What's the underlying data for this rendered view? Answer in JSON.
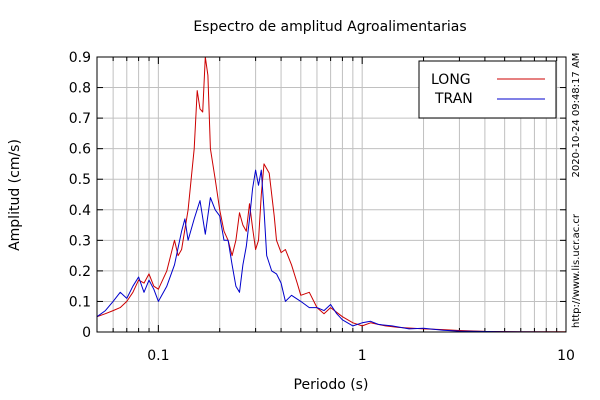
{
  "chart_data": {
    "type": "line",
    "title": "Espectro de amplitud Agroalimentarias",
    "xlabel": "Periodo (s)",
    "ylabel": "Amplitud (cm/s)",
    "x_scale": "log",
    "xlim": [
      0.05,
      10
    ],
    "ylim": [
      0,
      0.9
    ],
    "grid": true,
    "legend_position": "top-right",
    "x_ticks": [
      {
        "value": 0.1,
        "label": "0.1"
      },
      {
        "value": 1,
        "label": "1"
      },
      {
        "value": 10,
        "label": "10"
      }
    ],
    "y_ticks": [
      {
        "value": 0,
        "label": "0"
      },
      {
        "value": 0.1,
        "label": "0.1"
      },
      {
        "value": 0.2,
        "label": "0.2"
      },
      {
        "value": 0.3,
        "label": "0.3"
      },
      {
        "value": 0.4,
        "label": "0.4"
      },
      {
        "value": 0.5,
        "label": "0.5"
      },
      {
        "value": 0.6,
        "label": "0.6"
      },
      {
        "value": 0.7,
        "label": "0.7"
      },
      {
        "value": 0.8,
        "label": "0.8"
      },
      {
        "value": 0.9,
        "label": "0.9"
      }
    ],
    "series": [
      {
        "name": "LONG",
        "color": "#cc0000",
        "points": [
          [
            0.05,
            0.05
          ],
          [
            0.055,
            0.06
          ],
          [
            0.06,
            0.07
          ],
          [
            0.065,
            0.08
          ],
          [
            0.07,
            0.1
          ],
          [
            0.075,
            0.13
          ],
          [
            0.08,
            0.17
          ],
          [
            0.085,
            0.16
          ],
          [
            0.09,
            0.19
          ],
          [
            0.095,
            0.15
          ],
          [
            0.1,
            0.14
          ],
          [
            0.11,
            0.2
          ],
          [
            0.12,
            0.3
          ],
          [
            0.125,
            0.25
          ],
          [
            0.13,
            0.27
          ],
          [
            0.14,
            0.4
          ],
          [
            0.15,
            0.6
          ],
          [
            0.155,
            0.79
          ],
          [
            0.16,
            0.73
          ],
          [
            0.165,
            0.72
          ],
          [
            0.17,
            0.9
          ],
          [
            0.175,
            0.84
          ],
          [
            0.18,
            0.6
          ],
          [
            0.19,
            0.5
          ],
          [
            0.2,
            0.4
          ],
          [
            0.21,
            0.33
          ],
          [
            0.22,
            0.3
          ],
          [
            0.23,
            0.25
          ],
          [
            0.24,
            0.3
          ],
          [
            0.25,
            0.39
          ],
          [
            0.26,
            0.35
          ],
          [
            0.27,
            0.33
          ],
          [
            0.28,
            0.42
          ],
          [
            0.29,
            0.34
          ],
          [
            0.3,
            0.27
          ],
          [
            0.31,
            0.3
          ],
          [
            0.32,
            0.45
          ],
          [
            0.33,
            0.55
          ],
          [
            0.35,
            0.52
          ],
          [
            0.37,
            0.38
          ],
          [
            0.38,
            0.3
          ],
          [
            0.4,
            0.26
          ],
          [
            0.42,
            0.27
          ],
          [
            0.45,
            0.22
          ],
          [
            0.48,
            0.16
          ],
          [
            0.5,
            0.12
          ],
          [
            0.55,
            0.13
          ],
          [
            0.6,
            0.08
          ],
          [
            0.65,
            0.06
          ],
          [
            0.7,
            0.08
          ],
          [
            0.8,
            0.05
          ],
          [
            0.9,
            0.03
          ],
          [
            1.0,
            0.02
          ],
          [
            1.1,
            0.03
          ],
          [
            1.3,
            0.02
          ],
          [
            1.5,
            0.015
          ],
          [
            2.0,
            0.01
          ],
          [
            2.5,
            0.008
          ],
          [
            3.0,
            0.005
          ],
          [
            4.0,
            0.002
          ],
          [
            6.0,
            0.001
          ],
          [
            10.0,
            0.001
          ]
        ]
      },
      {
        "name": "TRAN",
        "color": "#0000cc",
        "points": [
          [
            0.05,
            0.05
          ],
          [
            0.055,
            0.07
          ],
          [
            0.06,
            0.1
          ],
          [
            0.065,
            0.13
          ],
          [
            0.07,
            0.11
          ],
          [
            0.075,
            0.15
          ],
          [
            0.08,
            0.18
          ],
          [
            0.085,
            0.13
          ],
          [
            0.09,
            0.17
          ],
          [
            0.095,
            0.14
          ],
          [
            0.1,
            0.1
          ],
          [
            0.11,
            0.15
          ],
          [
            0.12,
            0.22
          ],
          [
            0.13,
            0.33
          ],
          [
            0.135,
            0.37
          ],
          [
            0.14,
            0.3
          ],
          [
            0.15,
            0.37
          ],
          [
            0.16,
            0.43
          ],
          [
            0.17,
            0.32
          ],
          [
            0.18,
            0.44
          ],
          [
            0.19,
            0.4
          ],
          [
            0.2,
            0.38
          ],
          [
            0.21,
            0.3
          ],
          [
            0.22,
            0.3
          ],
          [
            0.23,
            0.22
          ],
          [
            0.24,
            0.15
          ],
          [
            0.25,
            0.13
          ],
          [
            0.26,
            0.22
          ],
          [
            0.27,
            0.28
          ],
          [
            0.28,
            0.37
          ],
          [
            0.29,
            0.47
          ],
          [
            0.3,
            0.53
          ],
          [
            0.31,
            0.48
          ],
          [
            0.32,
            0.53
          ],
          [
            0.33,
            0.4
          ],
          [
            0.34,
            0.25
          ],
          [
            0.36,
            0.2
          ],
          [
            0.38,
            0.19
          ],
          [
            0.4,
            0.16
          ],
          [
            0.42,
            0.1
          ],
          [
            0.45,
            0.12
          ],
          [
            0.5,
            0.1
          ],
          [
            0.55,
            0.08
          ],
          [
            0.6,
            0.08
          ],
          [
            0.65,
            0.07
          ],
          [
            0.7,
            0.09
          ],
          [
            0.75,
            0.06
          ],
          [
            0.8,
            0.04
          ],
          [
            0.9,
            0.02
          ],
          [
            1.0,
            0.03
          ],
          [
            1.1,
            0.035
          ],
          [
            1.2,
            0.025
          ],
          [
            1.4,
            0.02
          ],
          [
            1.7,
            0.01
          ],
          [
            2.0,
            0.012
          ],
          [
            2.5,
            0.006
          ],
          [
            3.0,
            0.003
          ],
          [
            5.0,
            0.001
          ],
          [
            10.0,
            0.0
          ]
        ]
      }
    ],
    "annotations": [
      "2020-10-24 09:48:17 AM",
      "http://www.lis.ucr.ac.cr"
    ]
  }
}
